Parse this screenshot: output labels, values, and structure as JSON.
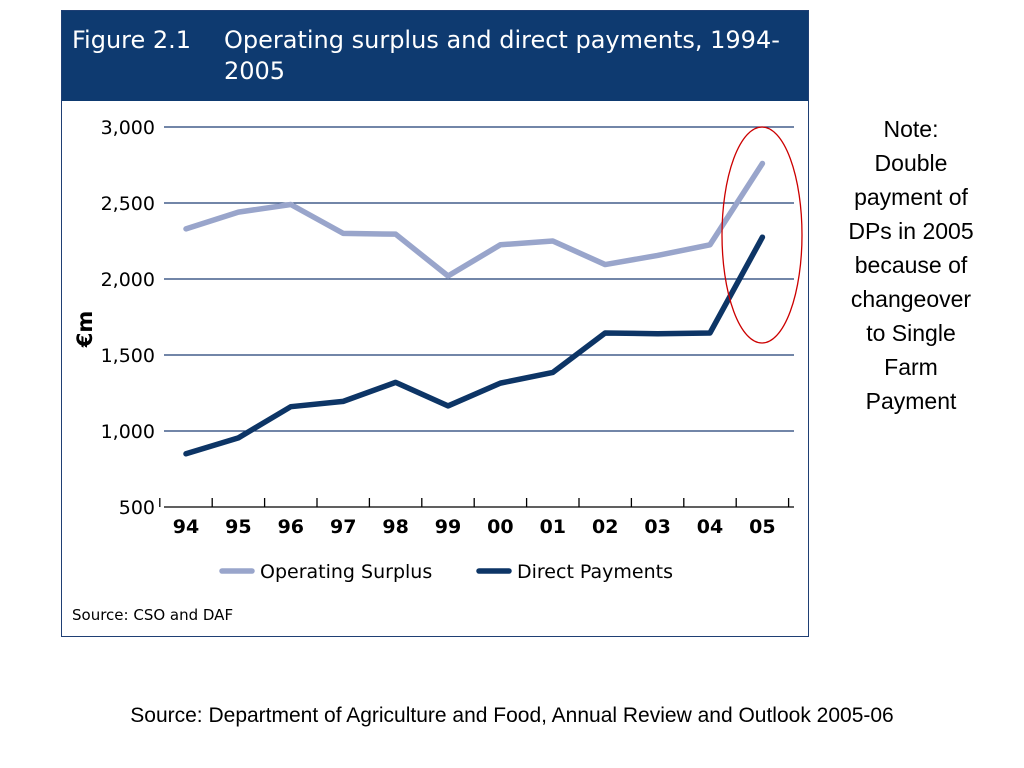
{
  "figure": {
    "number": "Figure 2.1",
    "title": "Operating surplus and direct payments, 1994-2005",
    "source": "Source: CSO and DAF"
  },
  "note": "Note:\nDouble\npayment of\nDPs in 2005\nbecause of\nchangeover\nto Single\nFarm\nPayment",
  "slide_source": "Source: Department of Agriculture and Food, Annual Review and Outlook 2005-06",
  "colors": {
    "header_bg": "#0e3a70",
    "operating_surplus": "#99a5cb",
    "direct_payments": "#0d3566",
    "gridline": "#1f3f74",
    "highlight_ellipse": "#cc0000"
  },
  "chart_data": {
    "type": "line",
    "title": "Operating surplus and direct payments, 1994-2005",
    "xlabel": "",
    "ylabel": "€m",
    "categories": [
      "94",
      "95",
      "96",
      "97",
      "98",
      "99",
      "00",
      "01",
      "02",
      "03",
      "04",
      "05"
    ],
    "y_ticks": [
      "3,000",
      "2,500",
      "2,000",
      "1,500",
      "1,000",
      "500"
    ],
    "ylim": [
      500,
      3000
    ],
    "grid": true,
    "legend_position": "bottom",
    "series": [
      {
        "name": "Operating Surplus",
        "values": [
          2330,
          2440,
          2490,
          2300,
          2295,
          2020,
          2225,
          2250,
          2095,
          2155,
          2225,
          2760
        ]
      },
      {
        "name": "Direct Payments",
        "values": [
          850,
          955,
          1160,
          1195,
          1320,
          1165,
          1315,
          1385,
          1645,
          1640,
          1645,
          2275
        ]
      }
    ]
  }
}
